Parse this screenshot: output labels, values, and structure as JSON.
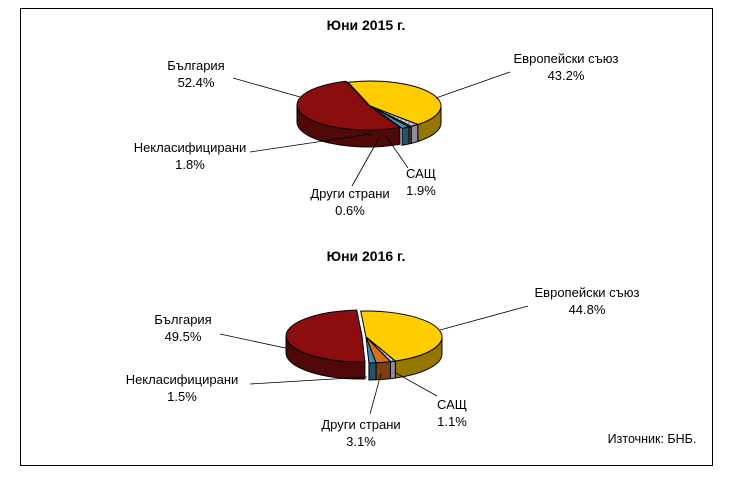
{
  "colors": {
    "eu": "#FFCC00",
    "bg": "#8B0D0D",
    "usa": "#B3B3C8",
    "other": "#D4701A",
    "uncl": "#3D8FB8"
  },
  "source": "Източник: БНБ.",
  "chart_data": [
    {
      "type": "pie",
      "title": "Юни 2015 г.",
      "slices": [
        {
          "key": "eu",
          "name": "Европейски съюз",
          "value": 43.2,
          "label": "43.2%"
        },
        {
          "key": "usa",
          "name": "САЩ",
          "value": 1.9,
          "label": "1.9%"
        },
        {
          "key": "other",
          "name": "Други страни",
          "value": 0.6,
          "label": "0.6%"
        },
        {
          "key": "uncl",
          "name": "Некласифицирани",
          "value": 1.8,
          "label": "1.8%"
        },
        {
          "key": "bg",
          "name": "България",
          "value": 52.4,
          "label": "52.4%"
        }
      ]
    },
    {
      "type": "pie",
      "title": "Юни 2016 г.",
      "slices": [
        {
          "key": "eu",
          "name": "Европейски съюз",
          "value": 44.8,
          "label": "44.8%"
        },
        {
          "key": "usa",
          "name": "САЩ",
          "value": 1.1,
          "label": "1.1%"
        },
        {
          "key": "other",
          "name": "Други страни",
          "value": 3.1,
          "label": "3.1%"
        },
        {
          "key": "uncl",
          "name": "Некласифицирани",
          "value": 1.5,
          "label": "1.5%"
        },
        {
          "key": "bg",
          "name": "България",
          "value": 49.5,
          "label": "49.5%"
        }
      ]
    }
  ]
}
